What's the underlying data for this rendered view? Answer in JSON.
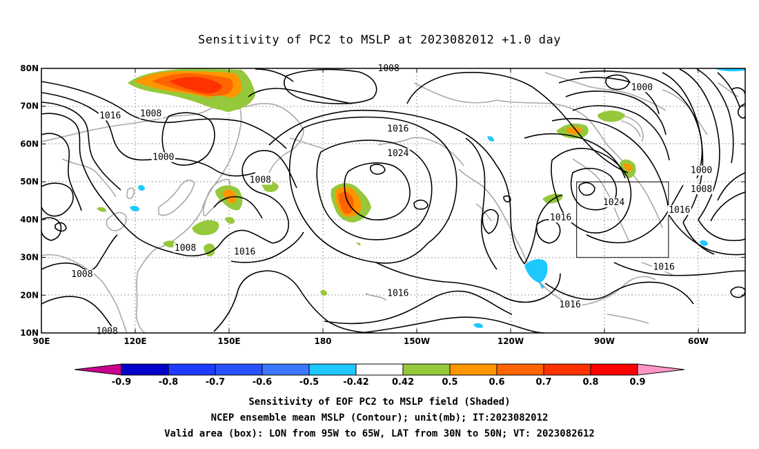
{
  "title": "Sensitivity of PC2 to MSLP at 2023082012 +1.0 day",
  "captions": {
    "line1": "Sensitivity of EOF PC2 to MSLP field (Shaded)",
    "line2": "NCEP ensemble mean MSLP (Contour); unit(mb); IT:2023082012",
    "line3": "Valid area (box): LON from 95W to 65W, LAT from 30N to 50N; VT: 2023082612"
  },
  "map": {
    "lon_range": [
      90,
      315
    ],
    "lat_range": [
      10,
      80
    ],
    "lat_ticks": [
      {
        "value": 80,
        "label": "80N"
      },
      {
        "value": 70,
        "label": "70N"
      },
      {
        "value": 60,
        "label": "60N"
      },
      {
        "value": 50,
        "label": "50N"
      },
      {
        "value": 40,
        "label": "40N"
      },
      {
        "value": 30,
        "label": "30N"
      },
      {
        "value": 20,
        "label": "20N"
      },
      {
        "value": 10,
        "label": "10N"
      }
    ],
    "lon_ticks": [
      {
        "value": 90,
        "label": "90E"
      },
      {
        "value": 120,
        "label": "120E"
      },
      {
        "value": 150,
        "label": "150E"
      },
      {
        "value": 180,
        "label": "180"
      },
      {
        "value": 210,
        "label": "150W"
      },
      {
        "value": 240,
        "label": "120W"
      },
      {
        "value": 270,
        "label": "90W"
      },
      {
        "value": 300,
        "label": "60W"
      }
    ],
    "valid_box": {
      "lon_from": 265,
      "lon_to": 295,
      "lat_from": 30,
      "lat_to": 50
    },
    "contour_labels": [
      {
        "text": "1008",
        "lon": 201,
        "lat": 80
      },
      {
        "text": "1000",
        "lon": 282,
        "lat": 75
      },
      {
        "text": "1016",
        "lon": 112,
        "lat": 67.5
      },
      {
        "text": "1008",
        "lon": 125,
        "lat": 68
      },
      {
        "text": "1016",
        "lon": 204,
        "lat": 64
      },
      {
        "text": "1000",
        "lon": 129,
        "lat": 56.5
      },
      {
        "text": "1024",
        "lon": 204,
        "lat": 57.5
      },
      {
        "text": "1000",
        "lon": 301,
        "lat": 53
      },
      {
        "text": "1008",
        "lon": 160,
        "lat": 50.5
      },
      {
        "text": "1008",
        "lon": 301,
        "lat": 48
      },
      {
        "text": "1024",
        "lon": 273,
        "lat": 44.5
      },
      {
        "text": "1016",
        "lon": 294,
        "lat": 42.5
      },
      {
        "text": "1016",
        "lon": 256,
        "lat": 40.5
      },
      {
        "text": "1008",
        "lon": 136,
        "lat": 32.5
      },
      {
        "text": "1016",
        "lon": 155,
        "lat": 31.5
      },
      {
        "text": "1008",
        "lon": 103,
        "lat": 25.5
      },
      {
        "text": "1016",
        "lon": 289,
        "lat": 27.5
      },
      {
        "text": "1016",
        "lon": 204,
        "lat": 20.5
      },
      {
        "text": "1016",
        "lon": 259,
        "lat": 17.5
      },
      {
        "text": "1008",
        "lon": 111,
        "lat": 10.5
      }
    ]
  },
  "colorbar": {
    "colors": [
      "#c8008c",
      "#0000c8",
      "#1e3cff",
      "#2850ff",
      "#3c78ff",
      "#1ec8ff",
      "#ffffff",
      "#96c83c",
      "#ff9600",
      "#ff6400",
      "#ff3200",
      "#ff0000",
      "#ff96c8"
    ],
    "labels": [
      "-0.9",
      "-0.8",
      "-0.7",
      "-0.6",
      "-0.5",
      "-0.42",
      "0.42",
      "0.5",
      "0.6",
      "0.7",
      "0.8",
      "0.9"
    ]
  }
}
